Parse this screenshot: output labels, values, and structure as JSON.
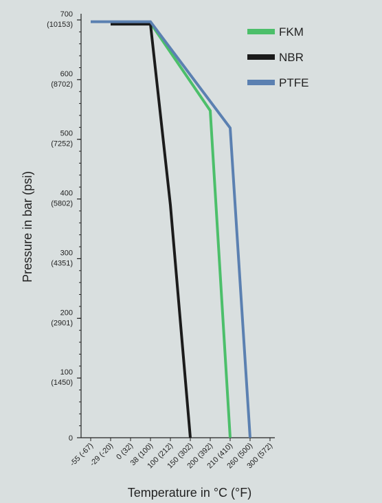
{
  "chart_data": {
    "type": "line",
    "xlabel": "Temperature in °C (°F)",
    "ylabel": "Pressure in bar (psi)",
    "x_categories": [
      "-55 (-67)",
      "-29 (-20)",
      "0 (32)",
      "38 (100)",
      "100 (212)",
      "150 (302)",
      "200 (392)",
      "210 (410)",
      "260 (500)",
      "300 (572)"
    ],
    "y_ticks": [
      {
        "value": 0,
        "bar": "0",
        "psi": ""
      },
      {
        "value": 100,
        "bar": "100",
        "psi": "(1450)"
      },
      {
        "value": 200,
        "bar": "200",
        "psi": "(2901)"
      },
      {
        "value": 300,
        "bar": "300",
        "psi": "(4351)"
      },
      {
        "value": 400,
        "bar": "400",
        "psi": "(5802)"
      },
      {
        "value": 500,
        "bar": "500",
        "psi": "(7252)"
      },
      {
        "value": 600,
        "bar": "600",
        "psi": "(8702)"
      },
      {
        "value": 700,
        "bar": "700",
        "psi": "(10153)"
      }
    ],
    "ylim": [
      0,
      700
    ],
    "grid": false,
    "legend_position": "top-right",
    "series": [
      {
        "name": "FKM",
        "color": "#4cbf6a",
        "points": [
          {
            "x": "-29 (-20)",
            "y": 695
          },
          {
            "x": "38 (100)",
            "y": 695
          },
          {
            "x": "200 (392)",
            "y": 548
          },
          {
            "x": "210 (410)",
            "y": 0
          }
        ]
      },
      {
        "name": "NBR",
        "color": "#1b1b1b",
        "points": [
          {
            "x": "-29 (-20)",
            "y": 693
          },
          {
            "x": "38 (100)",
            "y": 693
          },
          {
            "x": "100 (212)",
            "y": 390
          },
          {
            "x": "150 (302)",
            "y": 0
          }
        ]
      },
      {
        "name": "PTFE",
        "color": "#5b80b1",
        "points": [
          {
            "x": "-55 (-67)",
            "y": 697
          },
          {
            "x": "38 (100)",
            "y": 697
          },
          {
            "x": "210 (410)",
            "y": 519
          },
          {
            "x": "260 (500)",
            "y": 0
          }
        ]
      }
    ]
  }
}
